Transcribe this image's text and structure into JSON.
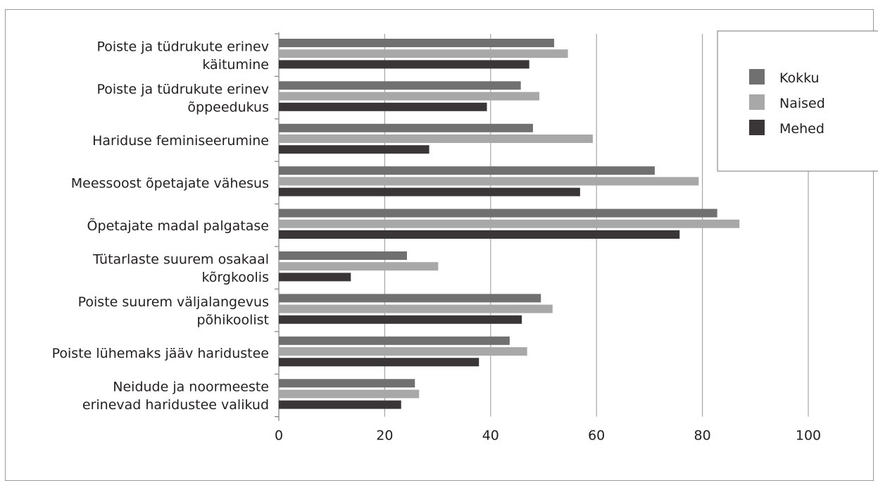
{
  "chart_data": {
    "type": "bar",
    "orientation": "horizontal",
    "categories": [
      [
        "Poiste ja tüdrukute erinev",
        "käitumine"
      ],
      [
        "Poiste ja tüdrukute erinev",
        "õppeedukus"
      ],
      [
        "Hariduse feminiseerumine"
      ],
      [
        "Meessoost õpetajate vähesus"
      ],
      [
        "Õpetajate madal palgatase"
      ],
      [
        "Tütarlaste suurem osakaal",
        "kõrgkoolis"
      ],
      [
        "Poiste suurem väljalangevus",
        "põhikoolist"
      ],
      [
        "Poiste lühemaks jääv haridustee"
      ],
      [
        "Neidude ja noormeeste",
        "erinevad haridustee valikud"
      ]
    ],
    "series": [
      {
        "name": "Kokku",
        "color": "#707070",
        "values": [
          52,
          45.7,
          48,
          71,
          82.8,
          24.2,
          49.5,
          43.6,
          25.7
        ]
      },
      {
        "name": "Naised",
        "color": "#a8a8a8",
        "values": [
          54.6,
          49.2,
          59.3,
          79.3,
          87,
          30.1,
          51.7,
          46.9,
          26.5
        ]
      },
      {
        "name": "Mehed",
        "color": "#3a3536",
        "values": [
          47.3,
          39.3,
          28.4,
          56.9,
          75.7,
          13.6,
          45.9,
          37.8,
          23.1
        ]
      }
    ],
    "xlim": [
      0,
      100
    ],
    "xticks": [
      0,
      20,
      40,
      60,
      80,
      100
    ],
    "grid": true,
    "legend_position": "top-right",
    "title": "",
    "xlabel": "",
    "ylabel": ""
  }
}
